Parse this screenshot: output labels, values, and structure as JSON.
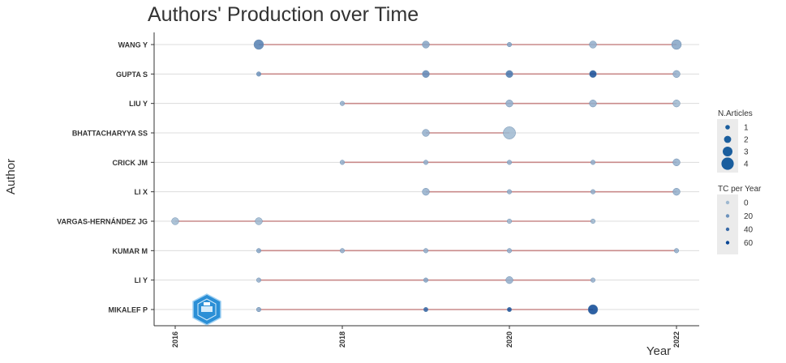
{
  "chart_data": {
    "type": "scatter",
    "title": "Authors' Production over Time",
    "xlabel": "Year",
    "ylabel": "Author",
    "xlim": [
      2016,
      2022
    ],
    "x_ticks": [
      "2016",
      "2018",
      "2020",
      "2022"
    ],
    "grid": true,
    "legend_placement": "right",
    "colors": {
      "line": "#c98a8a",
      "point_dark": "#08519c",
      "point_light": "#9ecae1",
      "grid": "#dcdcdc"
    },
    "authors": [
      "WANG Y",
      "GUPTA S",
      "LIU Y",
      "BHATTACHARYYA SS",
      "CRICK JM",
      "LI X",
      "VARGAS-HERNÁNDEZ JG",
      "KUMAR M",
      "LI Y",
      "MIKALEF P"
    ],
    "series": [
      {
        "name": "WANG Y",
        "points": [
          {
            "year": 2017,
            "n": 3,
            "tc": 30
          },
          {
            "year": 2019,
            "n": 2,
            "tc": 10
          },
          {
            "year": 2020,
            "n": 1,
            "tc": 10
          },
          {
            "year": 2021,
            "n": 2,
            "tc": 5
          },
          {
            "year": 2022,
            "n": 3,
            "tc": 10
          }
        ]
      },
      {
        "name": "GUPTA S",
        "points": [
          {
            "year": 2017,
            "n": 1,
            "tc": 20
          },
          {
            "year": 2019,
            "n": 2,
            "tc": 25
          },
          {
            "year": 2020,
            "n": 2,
            "tc": 35
          },
          {
            "year": 2021,
            "n": 2,
            "tc": 55
          },
          {
            "year": 2022,
            "n": 2,
            "tc": 5
          }
        ]
      },
      {
        "name": "LIU Y",
        "points": [
          {
            "year": 2018,
            "n": 1,
            "tc": 5
          },
          {
            "year": 2020,
            "n": 2,
            "tc": 5
          },
          {
            "year": 2021,
            "n": 2,
            "tc": 5
          },
          {
            "year": 2022,
            "n": 2,
            "tc": 0
          }
        ]
      },
      {
        "name": "BHATTACHARYYA SS",
        "points": [
          {
            "year": 2019,
            "n": 2,
            "tc": 5
          },
          {
            "year": 2020,
            "n": 4,
            "tc": 0
          }
        ]
      },
      {
        "name": "CRICK JM",
        "points": [
          {
            "year": 2018,
            "n": 1,
            "tc": 5
          },
          {
            "year": 2019,
            "n": 1,
            "tc": 5
          },
          {
            "year": 2020,
            "n": 1,
            "tc": 5
          },
          {
            "year": 2021,
            "n": 1,
            "tc": 5
          },
          {
            "year": 2022,
            "n": 2,
            "tc": 5
          }
        ]
      },
      {
        "name": "LI X",
        "points": [
          {
            "year": 2019,
            "n": 2,
            "tc": 5
          },
          {
            "year": 2020,
            "n": 1,
            "tc": 5
          },
          {
            "year": 2021,
            "n": 1,
            "tc": 5
          },
          {
            "year": 2022,
            "n": 2,
            "tc": 5
          }
        ]
      },
      {
        "name": "VARGAS-HERNÁNDEZ JG",
        "points": [
          {
            "year": 2016,
            "n": 2,
            "tc": 0
          },
          {
            "year": 2017,
            "n": 2,
            "tc": 0
          },
          {
            "year": 2020,
            "n": 1,
            "tc": 0
          },
          {
            "year": 2021,
            "n": 1,
            "tc": 0
          }
        ]
      },
      {
        "name": "KUMAR M",
        "points": [
          {
            "year": 2017,
            "n": 1,
            "tc": 10
          },
          {
            "year": 2018,
            "n": 1,
            "tc": 5
          },
          {
            "year": 2019,
            "n": 1,
            "tc": 5
          },
          {
            "year": 2020,
            "n": 1,
            "tc": 5
          },
          {
            "year": 2022,
            "n": 1,
            "tc": 5
          }
        ]
      },
      {
        "name": "LI Y",
        "points": [
          {
            "year": 2017,
            "n": 1,
            "tc": 5
          },
          {
            "year": 2019,
            "n": 1,
            "tc": 10
          },
          {
            "year": 2020,
            "n": 2,
            "tc": 5
          },
          {
            "year": 2021,
            "n": 1,
            "tc": 5
          }
        ]
      },
      {
        "name": "MIKALEF P",
        "points": [
          {
            "year": 2017,
            "n": 1,
            "tc": 10
          },
          {
            "year": 2019,
            "n": 1,
            "tc": 45
          },
          {
            "year": 2020,
            "n": 1,
            "tc": 55
          },
          {
            "year": 2021,
            "n": 3,
            "tc": 60
          }
        ]
      }
    ],
    "legend_size": {
      "title": "N.Articles",
      "items": [
        1,
        2,
        3,
        4
      ]
    },
    "legend_color": {
      "title": "TC per Year",
      "items": [
        0,
        20,
        40,
        60
      ]
    }
  }
}
